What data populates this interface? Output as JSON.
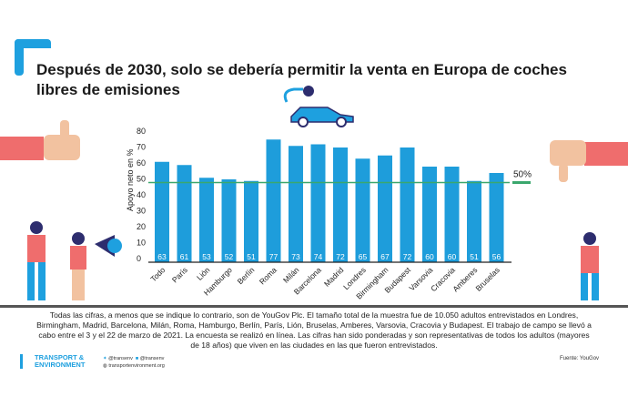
{
  "title": "Después de 2030, solo se debería permitir la venta en Europa de coches libres de emisiones",
  "chart_data": {
    "type": "bar",
    "categories": [
      "Todo",
      "París",
      "Lión",
      "Hamburgo",
      "Berlín",
      "Roma",
      "Milán",
      "Barcelona",
      "Madrid",
      "Londres",
      "Birmingham",
      "Budapest",
      "Varsovia",
      "Cracovia",
      "Amberes",
      "Bruselas"
    ],
    "values": [
      63,
      61,
      53,
      52,
      51,
      77,
      73,
      74,
      72,
      65,
      67,
      72,
      60,
      60,
      51,
      56
    ],
    "ylabel": "Apoyo neto en %",
    "yticks": [
      0,
      10,
      20,
      30,
      40,
      50,
      60,
      70,
      80
    ],
    "ylim": [
      0,
      80
    ],
    "reference_line": {
      "value": 50,
      "label": "50%",
      "color": "#3aa76d"
    },
    "bar_color": "#1e9ddb",
    "grid": false
  },
  "footnote": "Todas las cifras, a menos que se indique lo contrario, son de YouGov Plc. El tamaño total de la muestra fue de 10.050 adultos entrevistados en Londres, Birmingham, Madrid, Barcelona, Milán, Roma, Hamburgo, Berlín, París, Lión, Bruselas, Amberes, Varsovia, Cracovia y Budapest. El trabajo de campo se llevó a cabo entre el 3 y el 22 de marzo de 2021. La encuesta se realizó en línea. Las cifras han sido ponderadas y son representativas de todos los adultos (mayores de 18 años) que viven en las ciudades en las que fueron entrevistados.",
  "logo": {
    "line1": "TRANSPORT &",
    "line2": "ENVIRONMENT"
  },
  "social": {
    "twitter": "@transenv",
    "facebook": "@transenv",
    "web": "transportenvironment.org"
  },
  "source": "Fuente: YouGov"
}
